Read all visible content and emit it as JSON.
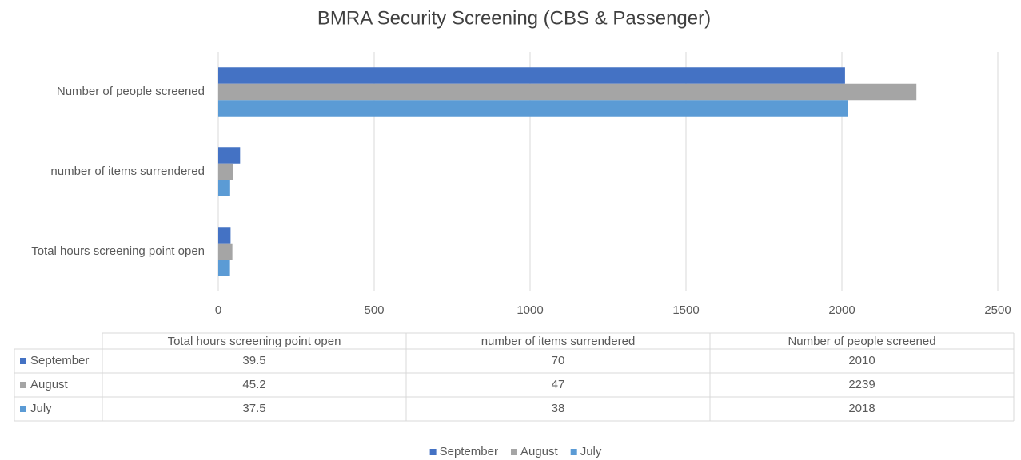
{
  "chart_data": {
    "type": "barh",
    "title": "BMRA Security Screening (CBS & Passenger)",
    "categories": [
      "Total hours screening point open",
      "number of items surrendered",
      "Number of people screened"
    ],
    "series": [
      {
        "name": "September",
        "color": "#4472c4",
        "values": [
          39.5,
          70,
          2010
        ]
      },
      {
        "name": "August",
        "color": "#a5a5a5",
        "values": [
          45.2,
          47,
          2239
        ]
      },
      {
        "name": "July",
        "color": "#5b9bd5",
        "values": [
          37.5,
          38,
          2018
        ]
      }
    ],
    "xlim": [
      0,
      2500
    ],
    "xticks": [
      0,
      500,
      1000,
      1500,
      2000,
      2500
    ],
    "grid": true,
    "legend": "bottom",
    "data_table": true
  }
}
